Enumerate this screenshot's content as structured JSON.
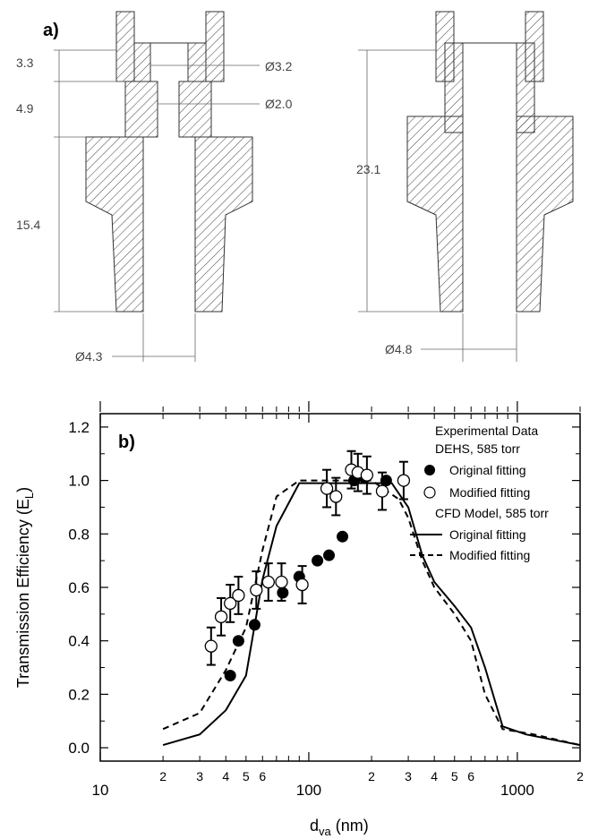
{
  "panel_a": {
    "label": "a)",
    "left_part": {
      "dims": [
        "3.3",
        "4.9",
        "15.4"
      ],
      "diameters": [
        "Ø3.2",
        "Ø2.0",
        "Ø4.3"
      ]
    },
    "right_part": {
      "dims": [
        "23.1"
      ],
      "diameters": [
        "Ø4.8"
      ]
    }
  },
  "chart_data": {
    "type": "scatter",
    "panel_label": "b)",
    "xlabel_main": "d",
    "xlabel_sub": "va",
    "xlabel_unit": " (nm)",
    "ylabel": "Transmission Efficiency (E",
    "ylabel_sub": "L",
    "ylabel_end": ")",
    "x_scale": "log",
    "xlim": [
      10,
      2000
    ],
    "ylim": [
      -0.05,
      1.25
    ],
    "x_major_ticks": [
      {
        "value": 10,
        "label": "10"
      },
      {
        "value": 100,
        "label": "100"
      },
      {
        "value": 1000,
        "label": "1000"
      }
    ],
    "x_minor_ticks": [
      {
        "value": 20,
        "label": "2"
      },
      {
        "value": 30,
        "label": "3"
      },
      {
        "value": 40,
        "label": "4"
      },
      {
        "value": 50,
        "label": "5"
      },
      {
        "value": 60,
        "label": "6"
      },
      {
        "value": 200,
        "label": "2"
      },
      {
        "value": 300,
        "label": "3"
      },
      {
        "value": 400,
        "label": "4"
      },
      {
        "value": 500,
        "label": "5"
      },
      {
        "value": 600,
        "label": "6"
      },
      {
        "value": 2000,
        "label": "2"
      }
    ],
    "y_ticks": [
      "0.0",
      "0.2",
      "0.4",
      "0.6",
      "0.8",
      "1.0",
      "1.2"
    ],
    "grid": false,
    "legend": {
      "position": "top-right",
      "header1": "Experimental Data",
      "header2": "DEHS, 585 torr",
      "item_filled": "Original fitting",
      "item_open": "Modified fitting",
      "header3": "CFD Model, 585 torr",
      "item_solid": "Original fitting",
      "item_dashed": "Modified fitting"
    },
    "series": [
      {
        "name": "Original fitting",
        "marker": "filled-circle",
        "points": [
          [
            42,
            0.27
          ],
          [
            46,
            0.4
          ],
          [
            55,
            0.46
          ],
          [
            75,
            0.58
          ],
          [
            90,
            0.64
          ],
          [
            110,
            0.7
          ],
          [
            125,
            0.72
          ],
          [
            145,
            0.79
          ],
          [
            165,
            1.0
          ],
          [
            185,
            1.01
          ],
          [
            235,
            1.0
          ]
        ]
      },
      {
        "name": "Modified fitting",
        "marker": "open-circle",
        "points": [
          [
            34,
            0.38,
            0.07
          ],
          [
            38,
            0.49,
            0.07
          ],
          [
            42,
            0.54,
            0.07
          ],
          [
            46,
            0.57,
            0.07
          ],
          [
            56,
            0.59,
            0.07
          ],
          [
            64,
            0.62,
            0.07
          ],
          [
            74,
            0.62,
            0.07
          ],
          [
            93,
            0.61,
            0.07
          ],
          [
            122,
            0.97,
            0.07
          ],
          [
            135,
            0.94,
            0.07
          ],
          [
            160,
            1.04,
            0.07
          ],
          [
            172,
            1.03,
            0.07
          ],
          [
            190,
            1.02,
            0.07
          ],
          [
            225,
            0.96,
            0.07
          ],
          [
            285,
            1.0,
            0.07
          ]
        ]
      },
      {
        "name": "Original fitting",
        "line": "solid",
        "points": [
          [
            20,
            0.01
          ],
          [
            30,
            0.05
          ],
          [
            40,
            0.14
          ],
          [
            50,
            0.27
          ],
          [
            60,
            0.63
          ],
          [
            70,
            0.83
          ],
          [
            90,
            0.99
          ],
          [
            120,
            0.99
          ],
          [
            160,
            0.99
          ],
          [
            250,
            0.99
          ],
          [
            300,
            0.9
          ],
          [
            350,
            0.72
          ],
          [
            400,
            0.62
          ],
          [
            500,
            0.53
          ],
          [
            600,
            0.45
          ],
          [
            700,
            0.3
          ],
          [
            850,
            0.08
          ],
          [
            1100,
            0.05
          ],
          [
            2000,
            0.01
          ]
        ]
      },
      {
        "name": "Modified fitting",
        "line": "dashed",
        "points": [
          [
            20,
            0.07
          ],
          [
            30,
            0.13
          ],
          [
            40,
            0.29
          ],
          [
            50,
            0.45
          ],
          [
            60,
            0.74
          ],
          [
            70,
            0.94
          ],
          [
            90,
            1.0
          ],
          [
            120,
            1.0
          ],
          [
            160,
            1.0
          ],
          [
            200,
            1.0
          ],
          [
            270,
            0.93
          ],
          [
            300,
            0.86
          ],
          [
            350,
            0.7
          ],
          [
            400,
            0.6
          ],
          [
            500,
            0.5
          ],
          [
            600,
            0.4
          ],
          [
            700,
            0.2
          ],
          [
            850,
            0.07
          ],
          [
            1200,
            0.05
          ],
          [
            2000,
            0.01
          ]
        ]
      }
    ]
  },
  "colors": {
    "hatch": "#333333",
    "dimension": "#666666",
    "plot": "#000000"
  }
}
